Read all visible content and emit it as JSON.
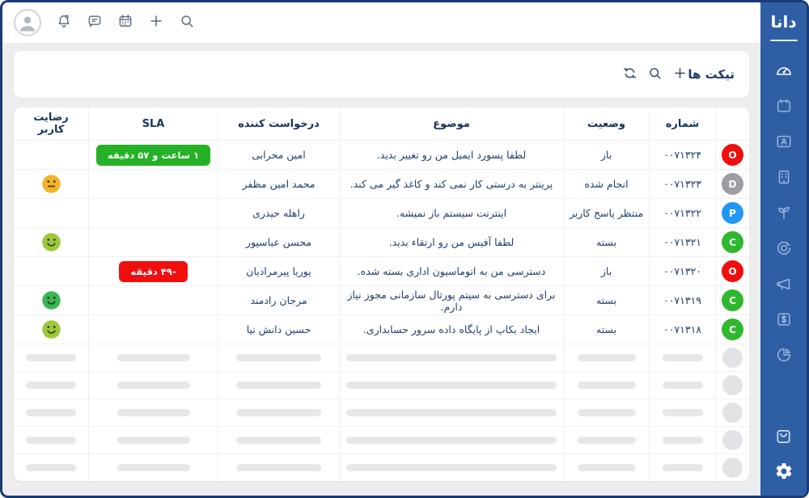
{
  "colors": {
    "sidebar": "#2e5fa4",
    "window_border": "#1b3c72",
    "navy_text": "#1d3a66",
    "status_open": "#f10e0e",
    "status_done": "#9d9da3",
    "status_pending": "#2196f3",
    "status_closed": "#2eb82e",
    "sla_green": "#25b125",
    "sla_red": "#f10e0e",
    "emoji_yellow": "#f1b32a",
    "emoji_yellowgreen": "#9cc93b",
    "emoji_green": "#3cb553"
  },
  "sidebar": {
    "logo": "دانا",
    "items": [
      "dashboard-gauge",
      "calendar",
      "contact-card",
      "organization-building",
      "growth-sprout",
      "goal-target",
      "megaphone",
      "billing-dollar",
      "pie-chart"
    ],
    "bottom_items": [
      "marketplace-bag",
      "settings-gear"
    ]
  },
  "topbar": {
    "icons": [
      "avatar",
      "bell",
      "chat",
      "calendar",
      "plus",
      "search"
    ]
  },
  "page": {
    "title": "تیکت ها",
    "tools": [
      "refresh",
      "search",
      "add"
    ]
  },
  "table": {
    "columns": [
      "",
      "شماره",
      "وضعیت",
      "موضوع",
      "درخواست کننده",
      "SLA",
      "رضایت کاربر"
    ],
    "skeleton_rows": 5,
    "tickets": [
      {
        "badge": {
          "letter": "O",
          "color": "#f10e0e"
        },
        "number": "۰۰۷۱۳۲۴",
        "status": "باز",
        "subject": "لطفا پسورد ایمیل من رو تغییر بدید.",
        "requester": "امین محرابی",
        "sla": {
          "label": "۱ ساعت و ۵۷ دقیقه",
          "color": "#25b125"
        },
        "satisfaction": null
      },
      {
        "badge": {
          "letter": "D",
          "color": "#9d9da3"
        },
        "number": "۰۰۷۱۳۲۳",
        "status": "انجام شده",
        "subject": "پرینتر به درستی کار نمی کند و کاغذ گیر می کند.",
        "requester": "محمد امین مظفر",
        "sla": null,
        "satisfaction": {
          "mood": "neutral",
          "color": "#f1b32a"
        }
      },
      {
        "badge": {
          "letter": "P",
          "color": "#2196f3"
        },
        "number": "۰۰۷۱۳۲۲",
        "status": "منتظر پاسخ کاربر",
        "subject": "اینترنت سیستم باز نمیشه.",
        "requester": "راهله حیدری",
        "sla": null,
        "satisfaction": null
      },
      {
        "badge": {
          "letter": "C",
          "color": "#2eb82e"
        },
        "number": "۰۰۷۱۳۲۱",
        "status": "بسته",
        "subject": "لطفا آفیس من رو ارتقاء بدید.",
        "requester": "محسن عباسپور",
        "sla": null,
        "satisfaction": {
          "mood": "happy",
          "color": "#9cc93b"
        }
      },
      {
        "badge": {
          "letter": "O",
          "color": "#f10e0e"
        },
        "number": "۰۰۷۱۳۲۰",
        "status": "باز",
        "subject": "دسترسی من به اتوماسیون اداری بسته شده.",
        "requester": "پوریا پیرمرادیان",
        "sla": {
          "label": "-۴۹ دقیقه",
          "color": "#f10e0e"
        },
        "satisfaction": null
      },
      {
        "badge": {
          "letter": "C",
          "color": "#2eb82e"
        },
        "number": "۰۰۷۱۳۱۹",
        "status": "بسته",
        "subject": "برای دسترسی به سیتم پورتال سازمانی مجوز نیاز دارم.",
        "requester": "مرجان رادمند",
        "sla": null,
        "satisfaction": {
          "mood": "happy",
          "color": "#3cb553"
        }
      },
      {
        "badge": {
          "letter": "C",
          "color": "#2eb82e"
        },
        "number": "۰۰۷۱۳۱۸",
        "status": "بسته",
        "subject": "ایجاد بکاپ از پایگاه داده سرور حسابداری.",
        "requester": "حسین دانش نیا",
        "sla": null,
        "satisfaction": {
          "mood": "happy",
          "color": "#9cc93b"
        }
      }
    ]
  }
}
